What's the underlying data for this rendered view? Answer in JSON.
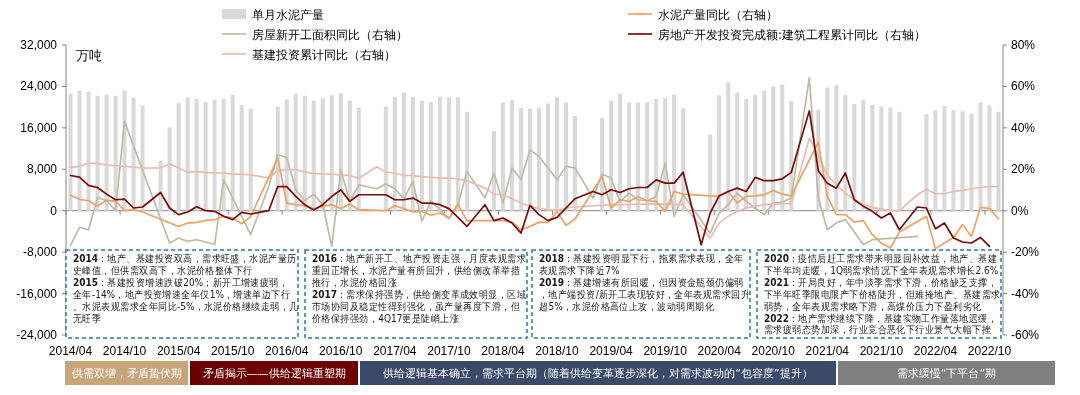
{
  "chart_data": {
    "type": "bar",
    "ylabel": "万吨",
    "legend": "top",
    "categories": [
      "2014/04",
      null,
      null,
      null,
      null,
      null,
      "2014/10",
      null,
      null,
      null,
      null,
      null,
      "2015/04",
      null,
      null,
      null,
      null,
      null,
      "2015/10",
      null,
      null,
      null,
      null,
      null,
      "2016/04",
      null,
      null,
      null,
      null,
      null,
      "2016/10",
      null,
      null,
      null,
      null,
      null,
      "2017/04",
      null,
      null,
      null,
      null,
      null,
      "2017/10",
      null,
      null,
      null,
      null,
      null,
      "2018/04",
      null,
      null,
      null,
      null,
      null,
      "2018/10",
      null,
      null,
      null,
      null,
      null,
      "2019/04",
      null,
      null,
      null,
      null,
      null,
      "2019/10",
      null,
      null,
      null,
      null,
      null,
      "2020/04",
      null,
      null,
      null,
      null,
      null,
      "2020/10",
      null,
      null,
      null,
      null,
      null,
      "2021/04",
      null,
      null,
      null,
      null,
      null,
      "2021/10",
      null,
      null,
      null,
      null,
      null,
      "2022/04",
      null,
      null,
      null,
      null,
      null,
      "2022/10",
      null
    ],
    "ylim": [
      -24000,
      32000
    ],
    "yticks": [
      {
        "value": -24000,
        "label": "-24,000"
      },
      {
        "value": -16000,
        "label": "-16,000"
      },
      {
        "value": -8000,
        "label": "-8,000"
      },
      0,
      {
        "value": 8000,
        "label": "8,000"
      },
      {
        "value": 16000,
        "label": "16,000"
      },
      {
        "value": 24000,
        "label": "24,000"
      },
      {
        "value": 32000,
        "label": "32,000"
      }
    ],
    "y2lim": [
      -60,
      80
    ],
    "y2ticks": [
      {
        "value": -60,
        "label": "-60%"
      },
      {
        "value": -40,
        "label": "-40%"
      },
      {
        "value": -20,
        "label": "-20%"
      },
      {
        "value": 0,
        "label": "0%"
      },
      {
        "value": 20,
        "label": "20%"
      },
      {
        "value": 40,
        "label": "40%"
      },
      {
        "value": 60,
        "label": "60%"
      },
      {
        "value": 80,
        "label": "80%"
      }
    ],
    "series": [
      {
        "name": "单月水泥产量",
        "color": "#d9d9d9",
        "values": [
          22600,
          23200,
          23000,
          22200,
          22400,
          22200,
          23200,
          21800,
          20300,
          null,
          9600,
          16100,
          20800,
          21900,
          21600,
          21000,
          21400,
          21600,
          22400,
          20400,
          19700,
          null,
          null,
          20100,
          21500,
          22600,
          22200,
          21300,
          21700,
          22300,
          22700,
          21300,
          19900,
          null,
          null,
          20100,
          22000,
          22800,
          22000,
          21200,
          21000,
          22000,
          21900,
          21900,
          19100,
          null,
          null,
          15400,
          20900,
          21400,
          19900,
          19700,
          19900,
          20700,
          21900,
          20900,
          18300,
          null,
          null,
          17900,
          21200,
          22600,
          20900,
          20900,
          20900,
          21600,
          21700,
          22400,
          19800,
          null,
          null,
          14700,
          22300,
          24800,
          22800,
          21600,
          22400,
          23200,
          24000,
          24400,
          21200,
          null,
          null,
          19500,
          23800,
          24200,
          22300,
          20600,
          21400,
          20500,
          20100,
          19900,
          19100,
          null,
          null,
          18600,
          19400,
          20200,
          19400,
          19200,
          18700,
          20900,
          20300,
          19100
        ]
      },
      {
        "name": "房屋新开工面积同比（右轴）",
        "type": "line",
        "axis": "y2",
        "color": "#bcbca6",
        "values": [
          -16.7,
          -8.0,
          -9.2,
          6.4,
          4.8,
          0.0,
          43.1,
          null,
          null,
          null,
          null,
          -15.6,
          -13.2,
          -14.8,
          -14.0,
          null,
          -16.2,
          14.9,
          null,
          null,
          -11.6,
          null,
          11.7,
          27.0,
          25.7,
          10.1,
          4.8,
          8.0,
          2.9,
          -17.2,
          19.8,
          4.5,
          12.5,
          null,
          10.6,
          12.9,
          10.6,
          5.8,
          14.1,
          -5.1,
          4.8,
          0.5,
          -3.9,
          2.9,
          19.0,
          null,
          6.1,
          18.2,
          3.7,
          20.6,
          14.9,
          29.4,
          26.2,
          20.6,
          14.9,
          21.4,
          20.6,
          null,
          6.1,
          17.7,
          15.7,
          4.2,
          8.5,
          5.3,
          4.8,
          6.9,
          23.0,
          -2.7,
          7.7,
          null,
          null,
          -10.8,
          -1.1,
          2.9,
          8.5,
          4.5,
          1.3,
          -1.9,
          3.7,
          4.2,
          6.1,
          null,
          64.2,
          6.1,
          -9.2,
          -5.9,
          -4.3,
          null,
          -16.4,
          -14.0,
          null,
          null,
          null,
          null,
          -12.4,
          null,
          null,
          null,
          null,
          null,
          null,
          null,
          null,
          null
        ]
      },
      {
        "name": "基建投资累计同比（右轴）",
        "type": "line",
        "axis": "y2",
        "color": "#e8bcb0",
        "values": [
          20.9,
          21.4,
          23.0,
          22.7,
          22.2,
          21.7,
          21.4,
          21.0,
          20.6,
          null,
          20.7,
          22.7,
          20.6,
          18.6,
          19.0,
          18.5,
          18.3,
          18.2,
          17.7,
          17.7,
          17.3,
          null,
          15.7,
          19.4,
          19.8,
          19.8,
          18.6,
          18.0,
          17.8,
          17.7,
          17.3,
          17.0,
          15.7,
          null,
          21.2,
          18.6,
          18.2,
          17.0,
          16.9,
          16.5,
          16.1,
          15.7,
          15.7,
          15.4,
          14.5,
          null,
          10.9,
          8.0,
          7.7,
          5.8,
          3.7,
          2.1,
          1.0,
          0.5,
          0.2,
          1.3,
          1.8,
          null,
          2.4,
          2.6,
          2.9,
          2.9,
          2.9,
          3.2,
          3.2,
          3.2,
          3.2,
          3.2,
          2.9,
          null,
          null,
          -13.2,
          -5.9,
          -2.7,
          -0.3,
          1.3,
          2.1,
          2.9,
          3.2,
          3.4,
          3.4,
          null,
          35.0,
          26.2,
          17.3,
          12.5,
          8.5,
          5.3,
          2.9,
          1.6,
          0.8,
          0,
          0,
          null,
          7.7,
          10.4,
          8.2,
          8.2,
          9.3,
          9.8,
          10.6,
          11.2,
          11.6,
          11.7
        ]
      },
      {
        "name": "水泥产量同比（右轴）",
        "type": "line",
        "axis": "y2",
        "color": "#eda265",
        "values": [
          7.5,
          5.5,
          4.8,
          2.3,
          5.0,
          4.6,
          0.0,
          0.5,
          -0.6,
          null,
          null,
          null,
          -7.6,
          -5.9,
          -5.6,
          -4.7,
          -4.3,
          -2.7,
          -3.5,
          -6.3,
          -2.7,
          null,
          null,
          25.4,
          3.7,
          2.9,
          2.4,
          0.8,
          2.1,
          2.9,
          1.0,
          3.2,
          0.5,
          null,
          null,
          0.0,
          2.4,
          1.0,
          -0.6,
          -0.3,
          -2.2,
          -1.1,
          -3.5,
          3.2,
          -4.8,
          null,
          null,
          null,
          -4.8,
          -5.5,
          -9.2,
          -7.6,
          -5.5,
          -5.6,
          -0.3,
          -7.1,
          -4.0,
          null,
          null,
          16.5,
          1.3,
          5.3,
          4.5,
          6.9,
          4.8,
          4.5,
          -0.3,
          9.3,
          8.0,
          null,
          null,
          null,
          6.9,
          9.3,
          3.7,
          6.9,
          7.2,
          7.7,
          9.8,
          8.0,
          7.2,
          null,
          null,
          33.1,
          7.0,
          -1.9,
          -1.9,
          -5.5,
          -4.8,
          -11.6,
          -15.6,
          -18.0,
          -10.3,
          null,
          null,
          -2.7,
          -18.3,
          -15.6,
          -12.9,
          -6.7,
          -12.4,
          1.6,
          1.0,
          -3.9
        ]
      },
      {
        "name": "房地产开发投资完成额:建筑工程累计同比（右轴）",
        "type": "line",
        "axis": "y2",
        "color": "#7a0c0c",
        "values": [
          17.0,
          16.2,
          12.2,
          11.2,
          8.0,
          5.3,
          5.6,
          1.3,
          1.8,
          null,
          8.8,
          1.3,
          -1.9,
          -0.6,
          1.9,
          0.0,
          -0.3,
          -2.7,
          -4.3,
          -0.8,
          -1.6,
          null,
          0.0,
          11.7,
          11.6,
          6.9,
          2.9,
          0.3,
          2.9,
          6.9,
          10.1,
          4.5,
          7.7,
          null,
          7.7,
          7.7,
          5.3,
          5.3,
          6.1,
          3.7,
          3.7,
          2.9,
          1.0,
          -3.2,
          -7.6,
          null,
          2.9,
          -4.8,
          -3.5,
          -5.9,
          -10.8,
          2.6,
          -1.9,
          -4.8,
          -3.2,
          1.3,
          5.8,
          null,
          9.3,
          7.7,
          10.1,
          8.8,
          10.6,
          11.2,
          11.2,
          14.9,
          13.3,
          13.3,
          18.6,
          null,
          -16.4,
          -1.1,
          7.2,
          9.3,
          10.9,
          9.3,
          16.1,
          14.5,
          14.5,
          15.4,
          18.5,
          null,
          48.2,
          19.3,
          13.3,
          10.9,
          18.2,
          5.3,
          2.1,
          -0.3,
          -3.5,
          -1.1,
          -9.2,
          null,
          1.8,
          1.3,
          -8.7,
          -5.9,
          -13.2,
          -15.1,
          -15.6,
          -12.9,
          -17.2,
          null
        ]
      }
    ],
    "annotations": [
      "**2014**：地产、基建投资双高，需求旺盛，水泥产量历史峰值，但供需双高下，水泥价格整体下行",
      "**2015**：基建投资增速跌破20%；新开工增速疲弱，全年-14%，地产投资增速全年仅1%，增速单边下行。水泥表观需求全年同比-5%，水泥价格继续走弱，几无旺季",
      "**2016**：地产新开工、地产投资走强，月度表观需求重回正增长，水泥产量有所回升，供给侧改革举措推行，水泥价格回涨",
      "**2017**：需求保持强势，供给侧变革成效明显，区域市场协同及稳定性得到强化，虽产量再度下滑，但价格保持强劲，4Q17更是陡峭上涨",
      "**2018**：基建投资明显下行，拖累需求表现，全年表观需求下降近7%",
      "**2019**：基建增速有所回暖，但因资金瓶颈仍偏弱，地产端投资/新开工表现较好，全年表观需求回升超5%，水泥价格高位上攻，波动弱周期化",
      "**2020**：疫情后赶工需求带来明显回补效益，地产、基建下半年均走暖，1Q弱需求情况下全年表观需求增长2.6%",
      "**2021**：开局良好，年中淡季需求下滑，价格缺乏支撑，下半年旺季限电限产下价格陡升，但难掩地产、基建需求弱势，全年表观需求略下滑，高煤价压力下盈利劣化",
      "**2022**：地产需求继续下降，基建实物工作量落地迟缓，需求疲弱态势加深，行业竞合恶化下行业景气大幅下挫",
      "供需双增，矛盾蛰伏期",
      "矛盾揭示——供给逻辑重塑期",
      "供给逻辑基本确立，需求平台期（随着供给变革逐步深化，对需求波动的“包容度”提升）",
      "需求缓慢“下平台”期"
    ]
  }
}
